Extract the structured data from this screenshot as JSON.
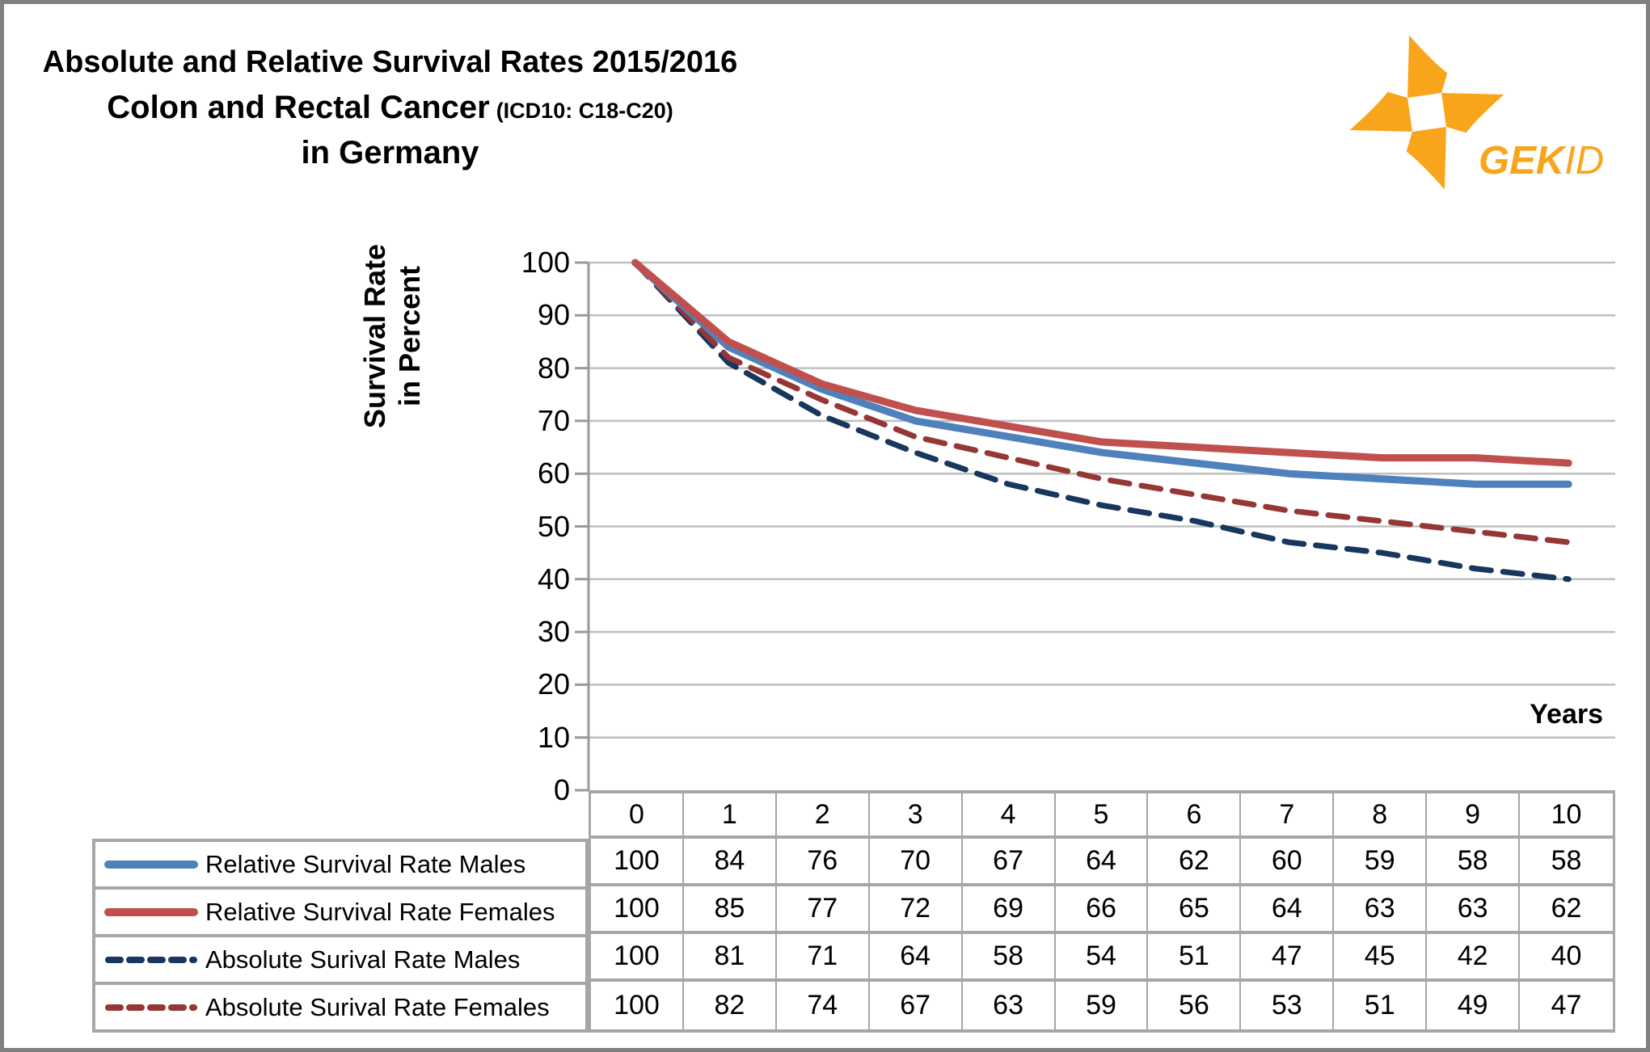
{
  "header": {
    "title_line1": "Absolute and Relative Survival Rates 2015/2016",
    "title_line2_main": "Colon and Rectal Cancer",
    "title_line2_sub": "(ICD10: C18-C20)",
    "title_line3": "in Germany"
  },
  "logo": {
    "brand_bold": "GEK",
    "brand_italic": "ID",
    "color": "#F9A51B"
  },
  "chart_data": {
    "type": "line",
    "title": "Absolute and Relative Survival Rates 2015/2016 Colon and Rectal Cancer (ICD10: C18-C20) in Germany",
    "xlabel": "Years",
    "ylabel": "Survival Rate in Percent",
    "ylabel_lines": [
      "Survival Rate",
      "in Percent"
    ],
    "ylim": [
      0,
      100
    ],
    "yticks": [
      0,
      10,
      20,
      30,
      40,
      50,
      60,
      70,
      80,
      90,
      100
    ],
    "grid": "horizontal",
    "legend_position": "bottom-left-table",
    "categories": [
      "0",
      "1",
      "2",
      "3",
      "4",
      "5",
      "6",
      "7",
      "8",
      "9",
      "10"
    ],
    "series": [
      {
        "name": "Relative Survival Rate Males",
        "style": "solid",
        "color": "#4F81BD",
        "values": [
          100,
          84,
          76,
          70,
          67,
          64,
          62,
          60,
          59,
          58,
          58
        ]
      },
      {
        "name": "Relative Survival Rate Females",
        "style": "solid",
        "color": "#C0504D",
        "values": [
          100,
          85,
          77,
          72,
          69,
          66,
          65,
          64,
          63,
          63,
          62
        ]
      },
      {
        "name": "Absolute Surival Rate Males",
        "style": "dashed",
        "color": "#17375E",
        "values": [
          100,
          81,
          71,
          64,
          58,
          54,
          51,
          47,
          45,
          42,
          40
        ]
      },
      {
        "name": "Absolute Surival Rate Females",
        "style": "dashed",
        "color": "#953735",
        "values": [
          100,
          82,
          74,
          67,
          63,
          59,
          56,
          53,
          51,
          49,
          47
        ]
      }
    ]
  },
  "colors": {
    "gridline": "#BFBFBF",
    "axis": "#9A9A9A",
    "table_border": "#A6A6A6",
    "frame_border": "#808080",
    "background": "#FFFFFF",
    "text": "#000000"
  }
}
